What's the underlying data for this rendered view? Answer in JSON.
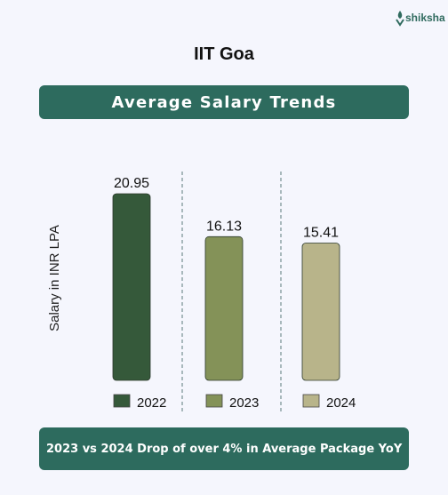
{
  "logo": {
    "text": "shiksha"
  },
  "title": "IIT Goa",
  "banner": "Average Salary Trends",
  "footer": "2023 vs 2024 Drop of over 4% in Average Package YoY",
  "chart_data": {
    "type": "bar",
    "categories": [
      "2022",
      "2023",
      "2024"
    ],
    "values": [
      20.95,
      16.13,
      15.41
    ],
    "data_labels": [
      "20.95",
      "16.13",
      "15.41"
    ],
    "ylabel": "Salary in INR LPA",
    "colors": [
      "#35593a",
      "#849258",
      "#b8b48a"
    ],
    "legend": [
      "2022",
      "2023",
      "2024"
    ],
    "legend_placement": "bottom",
    "grid": false,
    "axes_visible": false
  }
}
